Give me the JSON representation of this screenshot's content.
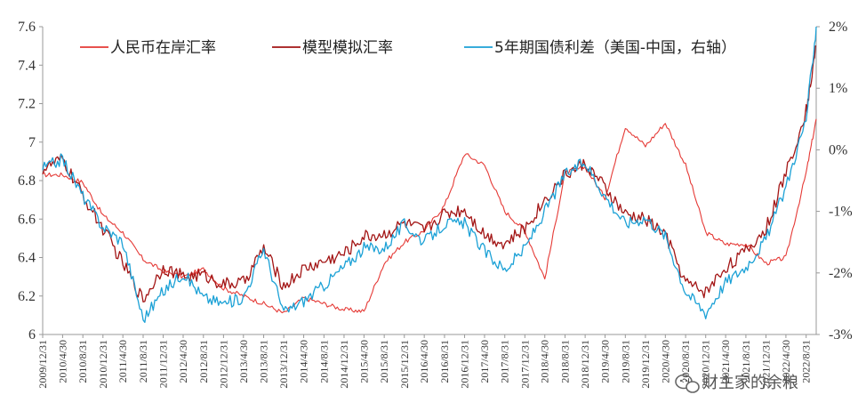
{
  "watermark": {
    "text": "财主家的余粮",
    "icon": "wechat-icon"
  },
  "chart_data": {
    "type": "line",
    "title": "",
    "xlabel": "",
    "ylabel": "",
    "ylim": [
      6.0,
      7.6
    ],
    "y2lim": [
      -3,
      2
    ],
    "y_ticks": [
      "6",
      "6.2",
      "6.4",
      "6.6",
      "6.8",
      "7",
      "7.2",
      "7.4",
      "7.6"
    ],
    "y2_ticks": [
      "-3%",
      "-2%",
      "-1%",
      "0%",
      "1%",
      "2%"
    ],
    "x_ticks": [
      "2009/12/31",
      "2010/4/30",
      "2010/8/31",
      "2010/12/31",
      "2011/4/30",
      "2011/8/31",
      "2011/12/31",
      "2012/4/30",
      "2012/8/31",
      "2012/12/31",
      "2013/4/30",
      "2013/8/31",
      "2013/12/31",
      "2014/4/30",
      "2014/8/31",
      "2014/12/31",
      "2015/4/30",
      "2015/8/31",
      "2015/12/31",
      "2016/4/30",
      "2016/8/31",
      "2016/12/31",
      "2017/4/30",
      "2017/8/31",
      "2017/12/31",
      "2018/4/30",
      "2018/8/31",
      "2018/12/31",
      "2019/4/30",
      "2019/8/31",
      "2019/12/31",
      "2020/4/30",
      "2020/8/31",
      "2020/12/31",
      "2021/4/30",
      "2021/8/31",
      "2021/12/31",
      "2022/4/30",
      "2022/8/31"
    ],
    "legend_position": "top",
    "grid": false,
    "x": [
      "2009/12/31",
      "2010/4/30",
      "2010/8/31",
      "2010/12/31",
      "2011/4/30",
      "2011/8/31",
      "2011/12/31",
      "2012/4/30",
      "2012/8/31",
      "2012/12/31",
      "2013/4/30",
      "2013/8/31",
      "2013/12/31",
      "2014/4/30",
      "2014/8/31",
      "2014/12/31",
      "2015/4/30",
      "2015/8/31",
      "2015/12/31",
      "2016/4/30",
      "2016/8/31",
      "2016/12/31",
      "2017/4/30",
      "2017/8/31",
      "2017/12/31",
      "2018/4/30",
      "2018/8/31",
      "2018/12/31",
      "2019/4/30",
      "2019/8/31",
      "2019/12/31",
      "2020/4/30",
      "2020/8/31",
      "2020/12/31",
      "2021/4/30",
      "2021/8/31",
      "2021/12/31",
      "2022/4/30",
      "2022/8/31",
      "2022/10/31"
    ],
    "series": [
      {
        "name": "人民币在岸汇率",
        "axis": "left",
        "color": "#e53935",
        "values": [
          6.83,
          6.83,
          6.79,
          6.62,
          6.53,
          6.39,
          6.33,
          6.3,
          6.34,
          6.24,
          6.2,
          6.16,
          6.11,
          6.19,
          6.16,
          6.13,
          6.12,
          6.37,
          6.48,
          6.54,
          6.67,
          6.94,
          6.88,
          6.64,
          6.54,
          6.29,
          6.84,
          6.87,
          6.71,
          7.08,
          6.98,
          7.1,
          6.88,
          6.53,
          6.47,
          6.47,
          6.37,
          6.4,
          6.84,
          7.12
        ]
      },
      {
        "name": "模型模拟汇率",
        "axis": "left",
        "color": "#a31515",
        "values": [
          6.86,
          6.91,
          6.72,
          6.55,
          6.37,
          6.18,
          6.35,
          6.3,
          6.31,
          6.26,
          6.27,
          6.45,
          6.25,
          6.34,
          6.38,
          6.42,
          6.51,
          6.52,
          6.58,
          6.54,
          6.63,
          6.65,
          6.52,
          6.47,
          6.55,
          6.7,
          6.83,
          6.89,
          6.76,
          6.62,
          6.6,
          6.52,
          6.27,
          6.22,
          6.35,
          6.43,
          6.55,
          6.84,
          7.16,
          7.5
        ]
      },
      {
        "name": "5年期国债利差（美国-中国，右轴）",
        "axis": "right",
        "color": "#1ba1d6",
        "values": [
          -0.3,
          -0.15,
          -0.75,
          -1.25,
          -1.5,
          -2.75,
          -2.3,
          -2.0,
          -2.4,
          -2.5,
          -2.4,
          -1.6,
          -2.65,
          -2.45,
          -2.2,
          -1.9,
          -1.6,
          -1.6,
          -1.2,
          -1.5,
          -1.2,
          -1.2,
          -1.65,
          -1.95,
          -1.6,
          -1.0,
          -0.4,
          -0.2,
          -0.75,
          -1.2,
          -1.1,
          -1.4,
          -2.3,
          -2.65,
          -2.15,
          -1.9,
          -1.45,
          -0.6,
          0.5,
          2.0
        ]
      }
    ]
  }
}
